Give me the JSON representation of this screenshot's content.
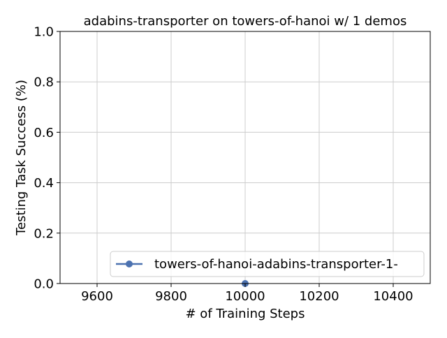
{
  "chart_data": {
    "type": "line",
    "title": "adabins-transporter on towers-of-hanoi w/ 1 demos",
    "xlabel": "# of Training Steps",
    "ylabel": "Testing Task Success (%)",
    "xlim": [
      9500,
      10500
    ],
    "ylim": [
      0.0,
      1.0
    ],
    "xticks": [
      9600,
      9800,
      10000,
      10200,
      10400
    ],
    "xtick_labels": [
      "9600",
      "9800",
      "10000",
      "10200",
      "10400"
    ],
    "yticks": [
      0.0,
      0.2,
      0.4,
      0.6,
      0.8,
      1.0
    ],
    "ytick_labels": [
      "0.0",
      "0.2",
      "0.4",
      "0.6",
      "0.8",
      "1.0"
    ],
    "grid": true,
    "legend_position": "lower-right",
    "series": [
      {
        "name": "towers-of-hanoi-adabins-transporter-1-",
        "color": "#4c72b0",
        "marker": "circle",
        "x": [
          10000
        ],
        "y": [
          0.0
        ]
      }
    ]
  }
}
